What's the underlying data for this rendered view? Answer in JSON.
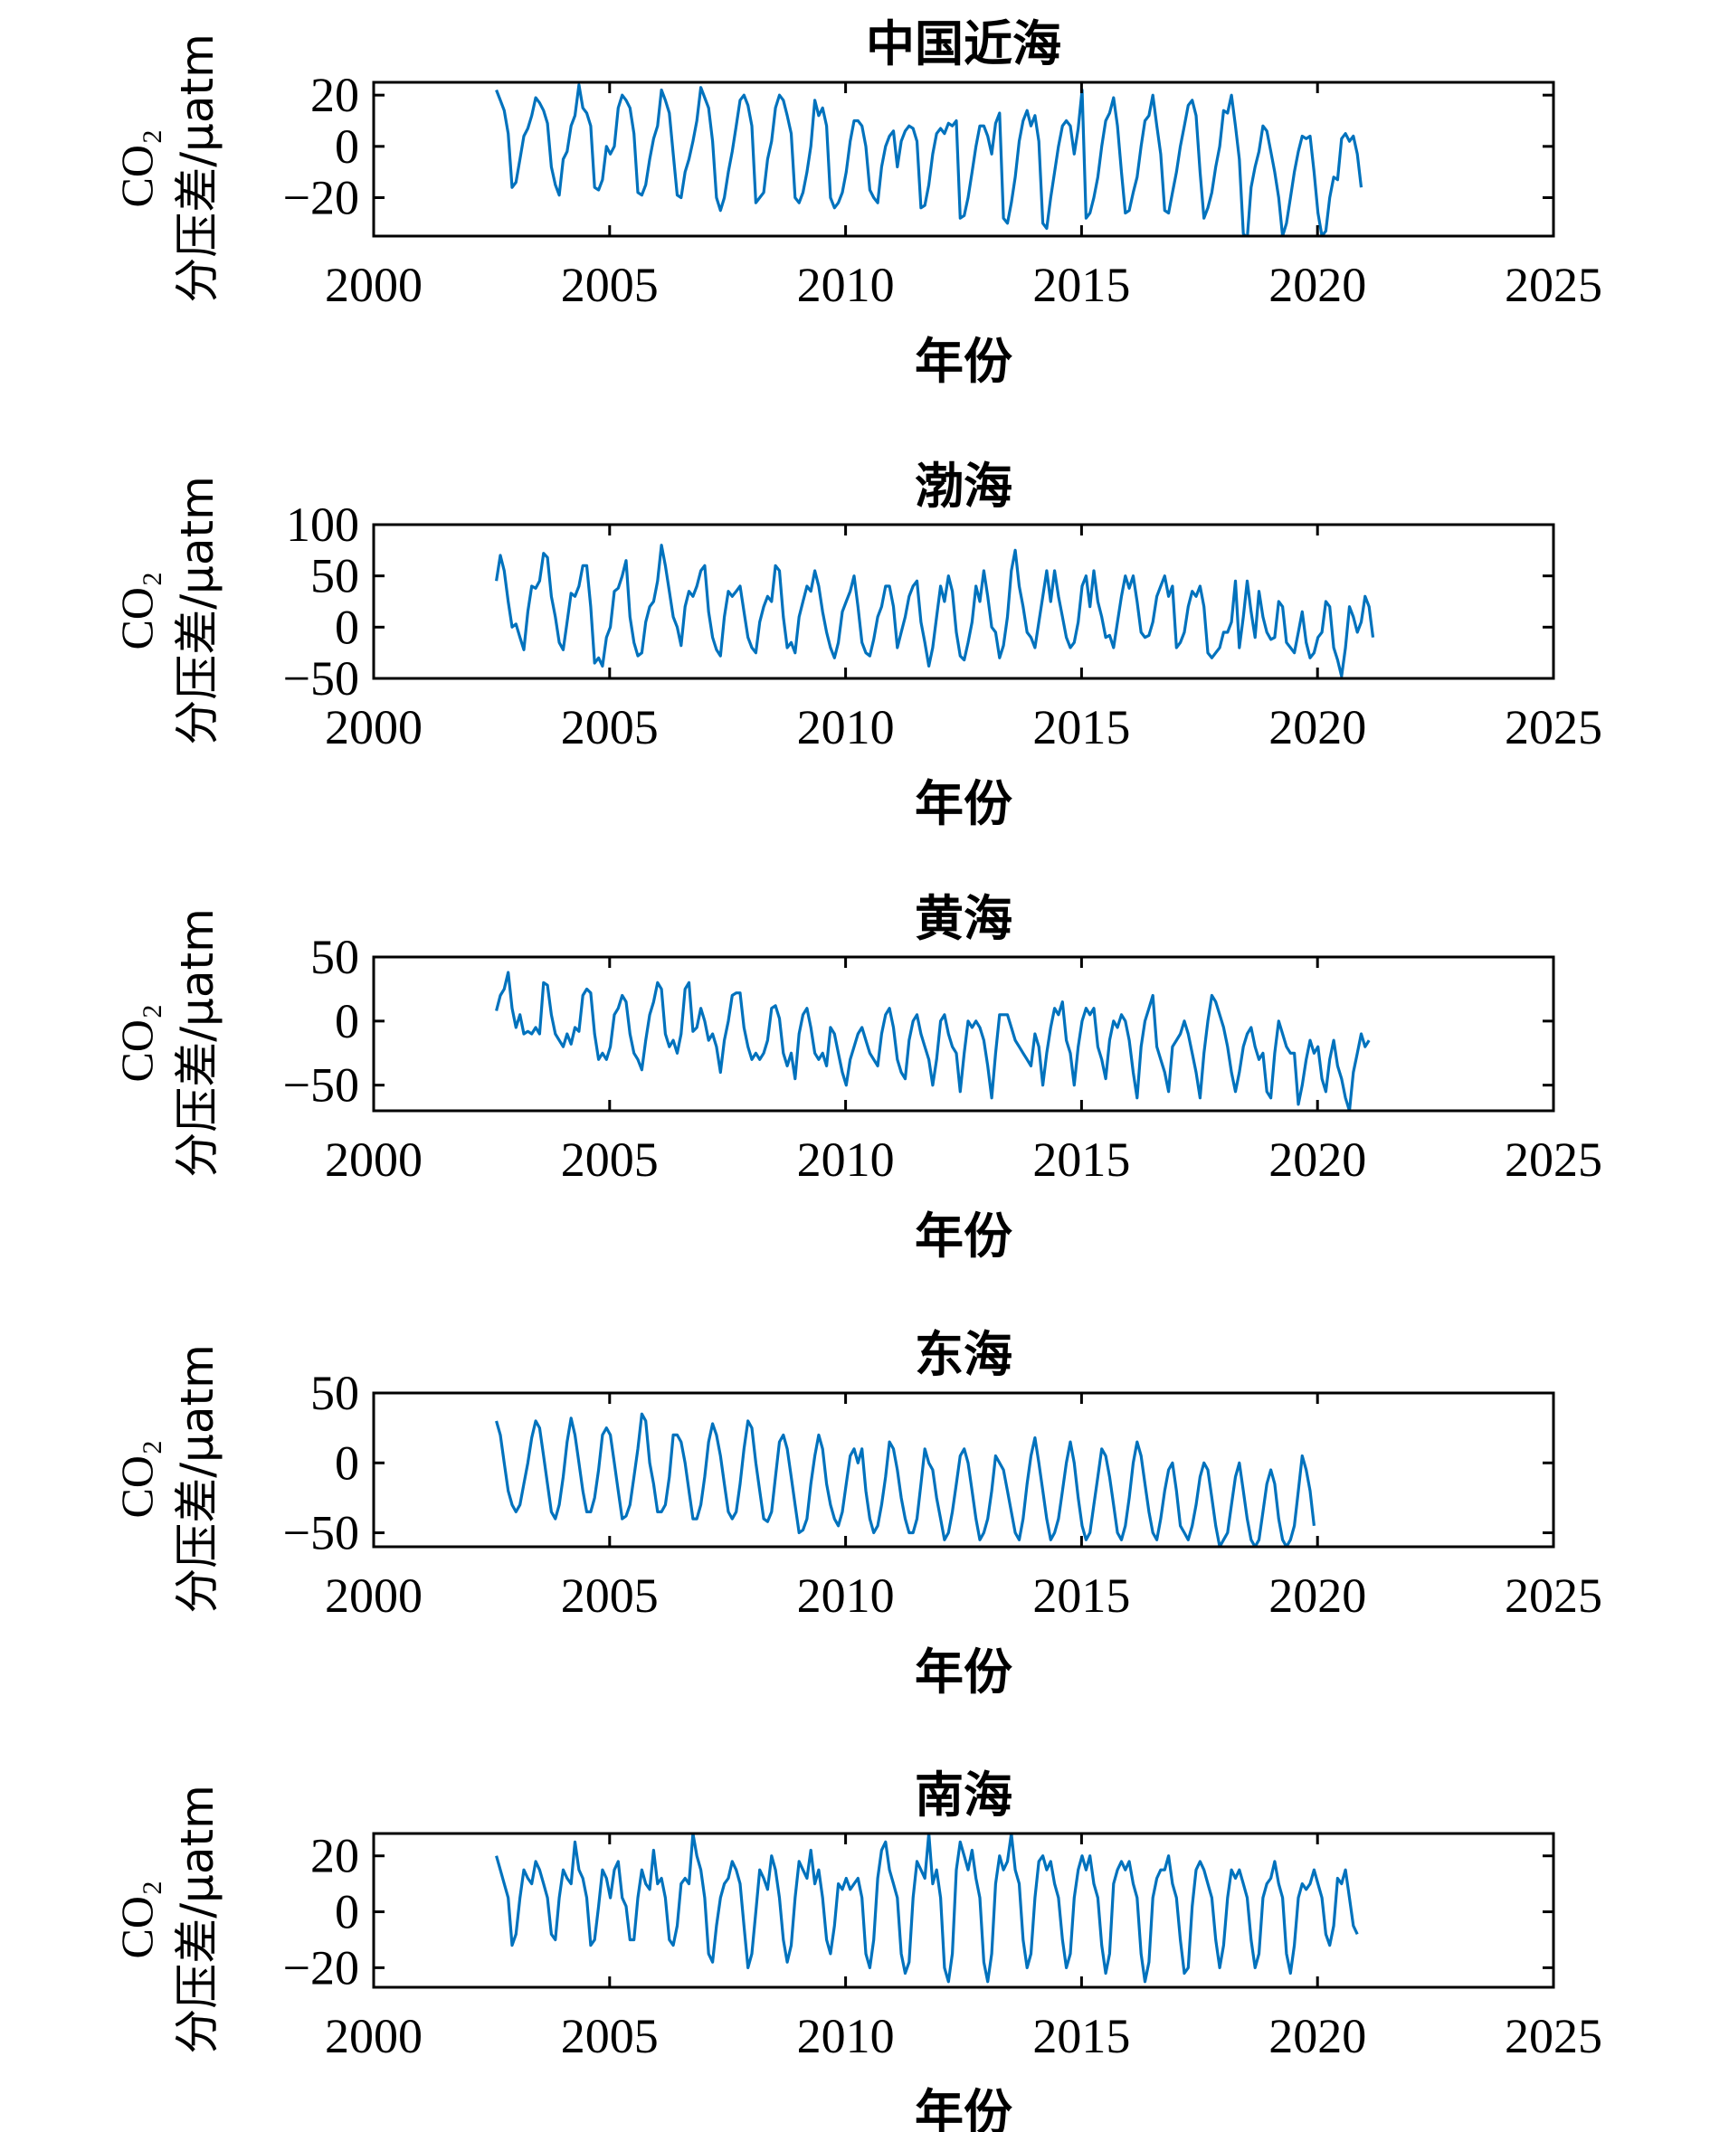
{
  "figure": {
    "line_color": "#0072BD"
  },
  "chart_data": [
    {
      "type": "line",
      "title": "中国近海",
      "xlabel": "年份",
      "ylabel_line1": "CO₂",
      "ylabel_line2": "分压差/μatm",
      "xlim": [
        2000,
        2025
      ],
      "ylim": [
        -35,
        25
      ],
      "xticks": [
        "2000",
        "2005",
        "2010",
        "2015",
        "2020",
        "2025"
      ],
      "yticks": [
        "20",
        "0",
        "−20"
      ],
      "ytick_values": [
        20,
        0,
        -20
      ],
      "grid": false,
      "x_start": 2002.6,
      "x_step": 0.0833,
      "values": [
        22,
        18,
        14,
        5,
        -16,
        -14,
        -5,
        4,
        7,
        12,
        19,
        17,
        14,
        9,
        -8,
        -15,
        -19,
        -5,
        -2,
        8,
        12,
        24,
        15,
        13,
        8,
        -16,
        -17,
        -13,
        0,
        -3,
        0,
        15,
        20,
        18,
        15,
        5,
        -18,
        -19,
        -15,
        -5,
        3,
        8,
        22,
        18,
        13,
        -3,
        -19,
        -20,
        -10,
        -5,
        2,
        10,
        23,
        19,
        15,
        2,
        -20,
        -25,
        -20,
        -10,
        -2,
        8,
        18,
        20,
        16,
        8,
        -22,
        -20,
        -18,
        -5,
        2,
        15,
        20,
        18,
        12,
        5,
        -20,
        -22,
        -18,
        -10,
        0,
        18,
        12,
        15,
        8,
        -20,
        -24,
        -22,
        -18,
        -10,
        2,
        10,
        10,
        8,
        0,
        -17,
        -20,
        -22,
        -8,
        0,
        4,
        6,
        -8,
        2,
        6,
        8,
        7,
        2,
        -24,
        -23,
        -15,
        -3,
        5,
        7,
        5,
        9,
        8,
        10,
        -28,
        -27,
        -20,
        -10,
        0,
        8,
        8,
        4,
        -3,
        9,
        13,
        -28,
        -30,
        -22,
        -12,
        2,
        10,
        14,
        8,
        12,
        2,
        -30,
        -32,
        -20,
        -10,
        0,
        8,
        10,
        8,
        -3,
        7,
        22,
        -28,
        -26,
        -20,
        -12,
        0,
        10,
        13,
        19,
        8,
        -10,
        -26,
        -25,
        -18,
        -12,
        0,
        10,
        12,
        20,
        8,
        -3,
        -25,
        -26,
        -18,
        -10,
        0,
        8,
        16,
        18,
        12,
        -10,
        -28,
        -24,
        -18,
        -8,
        0,
        14,
        13,
        20,
        8,
        -5,
        -34,
        -36,
        -16,
        -8,
        -2,
        8,
        6,
        -2,
        -10,
        -20,
        -35,
        -30,
        -20,
        -10,
        -2,
        4,
        3,
        4,
        -10,
        -26,
        -35,
        -33,
        -20,
        -12,
        -13,
        3,
        5,
        2,
        4,
        -3,
        -16
      ]
    },
    {
      "type": "line",
      "title": "渤海",
      "xlabel": "年份",
      "ylabel_line1": "CO₂",
      "ylabel_line2": "分压差/μatm",
      "xlim": [
        2000,
        2025
      ],
      "ylim": [
        -50,
        100
      ],
      "xticks": [
        "2000",
        "2005",
        "2010",
        "2015",
        "2020",
        "2025"
      ],
      "yticks": [
        "100",
        "50",
        "0",
        "−50"
      ],
      "ytick_values": [
        100,
        50,
        0,
        -50
      ],
      "grid": false,
      "x_start": 2002.6,
      "x_step": 0.0833,
      "values": [
        45,
        70,
        55,
        25,
        0,
        3,
        -10,
        -22,
        15,
        40,
        38,
        45,
        72,
        68,
        30,
        10,
        -15,
        -22,
        5,
        33,
        30,
        40,
        60,
        60,
        20,
        -35,
        -30,
        -38,
        -10,
        0,
        35,
        38,
        50,
        65,
        10,
        -15,
        -28,
        -25,
        5,
        20,
        25,
        45,
        80,
        60,
        35,
        10,
        0,
        -18,
        20,
        35,
        30,
        40,
        55,
        60,
        15,
        -10,
        -22,
        -28,
        10,
        35,
        30,
        35,
        40,
        15,
        -10,
        -20,
        -25,
        5,
        20,
        30,
        25,
        60,
        55,
        10,
        -20,
        -15,
        -25,
        10,
        25,
        40,
        35,
        55,
        40,
        15,
        -5,
        -20,
        -30,
        -15,
        15,
        25,
        35,
        50,
        20,
        -15,
        -25,
        -28,
        -12,
        10,
        20,
        40,
        40,
        20,
        -20,
        -5,
        10,
        30,
        40,
        45,
        5,
        -15,
        -38,
        -20,
        10,
        40,
        25,
        50,
        35,
        -5,
        -28,
        -32,
        -15,
        5,
        40,
        25,
        55,
        30,
        0,
        -5,
        -30,
        -18,
        10,
        55,
        75,
        40,
        20,
        -5,
        -10,
        -20,
        5,
        30,
        55,
        25,
        55,
        30,
        10,
        -10,
        -20,
        -15,
        5,
        40,
        50,
        20,
        55,
        25,
        10,
        -10,
        -8,
        -20,
        5,
        30,
        50,
        38,
        50,
        25,
        -5,
        -10,
        -8,
        5,
        30,
        40,
        50,
        30,
        40,
        -20,
        -15,
        -5,
        20,
        35,
        30,
        40,
        20,
        -25,
        -30,
        -25,
        -20,
        -5,
        -5,
        5,
        45,
        -20,
        10,
        45,
        15,
        -10,
        35,
        10,
        -5,
        -12,
        -10,
        25,
        20,
        -15,
        -20,
        -25,
        -5,
        15,
        -15,
        -30,
        -25,
        -10,
        -5,
        25,
        20,
        -20,
        -32,
        -48,
        -20,
        20,
        10,
        -5,
        5,
        30,
        20,
        -10
      ]
    },
    {
      "type": "line",
      "title": "黄海",
      "xlabel": "年份",
      "ylabel_line1": "CO₂",
      "ylabel_line2": "分压差/μatm",
      "xlim": [
        2000,
        2025
      ],
      "ylim": [
        -70,
        50
      ],
      "xticks": [
        "2000",
        "2005",
        "2010",
        "2015",
        "2020",
        "2025"
      ],
      "yticks": [
        "50",
        "0",
        "−50"
      ],
      "ytick_values": [
        50,
        0,
        -50
      ],
      "grid": false,
      "x_start": 2002.6,
      "x_step": 0.0833,
      "values": [
        8,
        20,
        25,
        38,
        10,
        -5,
        5,
        -10,
        -8,
        -10,
        -5,
        -10,
        30,
        28,
        5,
        -10,
        -15,
        -20,
        -10,
        -18,
        -5,
        -8,
        20,
        25,
        22,
        -10,
        -30,
        -25,
        -30,
        -20,
        5,
        10,
        20,
        15,
        -10,
        -25,
        -30,
        -38,
        -15,
        5,
        15,
        30,
        25,
        -10,
        -20,
        -15,
        -25,
        -10,
        25,
        30,
        -8,
        -5,
        10,
        0,
        -15,
        -10,
        -20,
        -40,
        -15,
        0,
        20,
        22,
        22,
        -5,
        -20,
        -30,
        -25,
        -30,
        -25,
        -15,
        10,
        12,
        2,
        -25,
        -35,
        -25,
        -45,
        -10,
        5,
        10,
        -5,
        -25,
        -30,
        -25,
        -35,
        -5,
        -10,
        -25,
        -40,
        -50,
        -30,
        -20,
        -10,
        -5,
        -15,
        -25,
        -30,
        -35,
        -10,
        5,
        10,
        -5,
        -30,
        -40,
        -45,
        -15,
        0,
        5,
        -10,
        -20,
        -30,
        -50,
        -30,
        0,
        5,
        -10,
        -20,
        -25,
        -55,
        -25,
        0,
        -5,
        0,
        -5,
        -15,
        -35,
        -60,
        -25,
        5,
        5,
        5,
        -5,
        -15,
        -20,
        -25,
        -30,
        -35,
        -10,
        -20,
        -50,
        -25,
        -5,
        10,
        5,
        15,
        -15,
        -25,
        -50,
        -20,
        0,
        10,
        5,
        10,
        -20,
        -30,
        -45,
        -15,
        0,
        -5,
        5,
        0,
        -15,
        -40,
        -60,
        -20,
        0,
        10,
        20,
        -20,
        -30,
        -40,
        -55,
        -20,
        -15,
        -10,
        0,
        -10,
        -25,
        -40,
        -60,
        -25,
        0,
        20,
        15,
        5,
        -5,
        -20,
        -40,
        -55,
        -40,
        -20,
        -10,
        -5,
        -20,
        -30,
        -25,
        -55,
        -60,
        -25,
        0,
        -10,
        -20,
        -25,
        -25,
        -65,
        -50,
        -30,
        -15,
        -25,
        -20,
        -45,
        -55,
        -30,
        -15,
        -35,
        -45,
        -60,
        -70,
        -40,
        -25,
        -10,
        -20,
        -15
      ]
    },
    {
      "type": "line",
      "title": "东海",
      "xlabel": "年份",
      "ylabel_line1": "CO₂",
      "ylabel_line2": "分压差/μatm",
      "xlim": [
        2000,
        2025
      ],
      "ylim": [
        -60,
        50
      ],
      "xticks": [
        "2000",
        "2005",
        "2010",
        "2015",
        "2020",
        "2025"
      ],
      "yticks": [
        "50",
        "0",
        "−50"
      ],
      "ytick_values": [
        50,
        0,
        -50
      ],
      "grid": false,
      "x_start": 2002.6,
      "x_step": 0.0833,
      "values": [
        30,
        20,
        0,
        -20,
        -30,
        -35,
        -30,
        -15,
        0,
        18,
        30,
        25,
        5,
        -15,
        -35,
        -40,
        -30,
        -10,
        15,
        32,
        20,
        0,
        -20,
        -35,
        -35,
        -25,
        -5,
        20,
        25,
        20,
        0,
        -20,
        -40,
        -38,
        -30,
        -10,
        10,
        35,
        30,
        0,
        -15,
        -35,
        -35,
        -30,
        -10,
        20,
        20,
        15,
        0,
        -20,
        -40,
        -40,
        -30,
        -10,
        15,
        28,
        20,
        5,
        -15,
        -35,
        -40,
        -35,
        -15,
        10,
        30,
        25,
        0,
        -20,
        -40,
        -42,
        -35,
        -10,
        15,
        20,
        10,
        -10,
        -30,
        -50,
        -48,
        -40,
        -15,
        5,
        20,
        10,
        -15,
        -30,
        -40,
        -45,
        -35,
        -15,
        5,
        10,
        0,
        10,
        -20,
        -40,
        -50,
        -45,
        -30,
        -10,
        15,
        10,
        -5,
        -25,
        -40,
        -50,
        -50,
        -40,
        -15,
        10,
        0,
        -5,
        -25,
        -40,
        -55,
        -50,
        -35,
        -15,
        5,
        10,
        0,
        -20,
        -40,
        -55,
        -50,
        -40,
        -20,
        5,
        0,
        -5,
        -20,
        -35,
        -50,
        -55,
        -40,
        -15,
        5,
        18,
        0,
        -20,
        -40,
        -55,
        -50,
        -40,
        -20,
        0,
        15,
        0,
        -25,
        -45,
        -55,
        -50,
        -30,
        -10,
        10,
        5,
        -10,
        -30,
        -50,
        -55,
        -45,
        -25,
        0,
        15,
        5,
        -15,
        -35,
        -50,
        -55,
        -40,
        -20,
        -5,
        0,
        -20,
        -45,
        -50,
        -55,
        -45,
        -30,
        -10,
        0,
        -5,
        -25,
        -45,
        -60,
        -55,
        -50,
        -30,
        -10,
        0,
        -20,
        -40,
        -55,
        -60,
        -55,
        -35,
        -15,
        -5,
        -15,
        -40,
        -55,
        -60,
        -55,
        -45,
        -20,
        5,
        -5,
        -20,
        -45
      ]
    },
    {
      "type": "line",
      "title": "南海",
      "xlabel": "年份",
      "ylabel_line1": "CO₂",
      "ylabel_line2": "分压差/μatm",
      "xlim": [
        2000,
        2025
      ],
      "ylim": [
        -27,
        28
      ],
      "xticks": [
        "2000",
        "2005",
        "2010",
        "2015",
        "2020",
        "2025"
      ],
      "yticks": [
        "20",
        "0",
        "−20"
      ],
      "ytick_values": [
        20,
        0,
        -20
      ],
      "grid": false,
      "x_start": 2002.6,
      "x_step": 0.0833,
      "values": [
        20,
        15,
        10,
        5,
        -12,
        -8,
        5,
        15,
        12,
        10,
        18,
        15,
        10,
        5,
        -8,
        -10,
        5,
        15,
        12,
        10,
        25,
        15,
        12,
        5,
        -12,
        -10,
        2,
        15,
        12,
        5,
        15,
        18,
        5,
        2,
        -10,
        -10,
        5,
        15,
        10,
        8,
        22,
        10,
        12,
        5,
        -10,
        -12,
        -5,
        10,
        12,
        10,
        28,
        20,
        15,
        5,
        -15,
        -18,
        -5,
        5,
        10,
        12,
        18,
        15,
        10,
        -5,
        -20,
        -15,
        0,
        15,
        12,
        8,
        20,
        15,
        5,
        -10,
        -18,
        -12,
        5,
        18,
        15,
        12,
        22,
        10,
        15,
        5,
        -10,
        -15,
        -5,
        10,
        8,
        12,
        8,
        10,
        12,
        5,
        -15,
        -20,
        -10,
        12,
        22,
        25,
        15,
        10,
        5,
        -15,
        -22,
        -18,
        5,
        18,
        15,
        12,
        28,
        10,
        15,
        5,
        -20,
        -25,
        -15,
        15,
        25,
        20,
        15,
        22,
        12,
        5,
        -18,
        -25,
        -15,
        10,
        20,
        15,
        18,
        28,
        15,
        10,
        -10,
        -20,
        -15,
        5,
        18,
        20,
        15,
        18,
        10,
        5,
        -10,
        -20,
        -15,
        5,
        15,
        20,
        15,
        20,
        10,
        5,
        -12,
        -22,
        -15,
        10,
        15,
        18,
        15,
        18,
        10,
        5,
        -15,
        -25,
        -18,
        5,
        12,
        15,
        15,
        20,
        10,
        5,
        -10,
        -22,
        -20,
        2,
        15,
        18,
        15,
        10,
        5,
        -10,
        -20,
        -12,
        5,
        15,
        12,
        15,
        10,
        5,
        -10,
        -20,
        -15,
        5,
        10,
        12,
        18,
        10,
        5,
        -15,
        -22,
        -12,
        5,
        10,
        8,
        10,
        15,
        10,
        5,
        -8,
        -12,
        -5,
        12,
        10,
        15,
        5,
        -5,
        -8
      ]
    }
  ]
}
